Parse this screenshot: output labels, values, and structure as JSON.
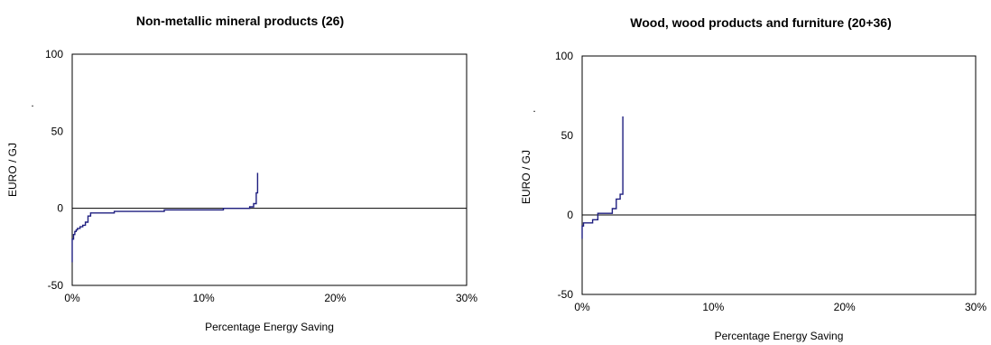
{
  "chart_data": [
    {
      "type": "line",
      "title": "Non-metallic mineral products (26)",
      "xlabel": "Percentage Energy Saving",
      "ylabel": "EURO / GJ",
      "ylabel_mark": ".",
      "xlim": [
        0,
        30
      ],
      "ylim": [
        -50,
        100
      ],
      "x_ticks": [
        "0%",
        "10%",
        "20%",
        "30%"
      ],
      "y_ticks": [
        "100",
        "50",
        "0",
        "-50"
      ],
      "grid": false,
      "legend": "none",
      "line_color": "#1f1f80",
      "series": [
        {
          "x": [
            0,
            0,
            0.1,
            0.1,
            0.2,
            0.2,
            0.3,
            0.3,
            0.4,
            0.4,
            0.6,
            0.6,
            0.8,
            0.8,
            1.0,
            1.0,
            1.2,
            1.2,
            1.4,
            1.4,
            3.2,
            3.2,
            7.0,
            7.0,
            11.5,
            11.5,
            13.5,
            13.5,
            13.8,
            13.8,
            14.0,
            14.0,
            14.1,
            14.1
          ],
          "y": [
            -35,
            -20,
            -20,
            -17,
            -17,
            -15,
            -15,
            -14,
            -14,
            -13,
            -13,
            -12,
            -12,
            -11,
            -11,
            -9,
            -9,
            -5,
            -5,
            -3,
            -3,
            -2,
            -2,
            -1,
            -1,
            0,
            0,
            1,
            1,
            3,
            3,
            10,
            10,
            23
          ]
        }
      ]
    },
    {
      "type": "line",
      "title": "Wood, wood products and furniture (20+36)",
      "xlabel": "Percentage Energy Saving",
      "ylabel": "EURO / GJ",
      "ylabel_mark": ".",
      "xlim": [
        0,
        30
      ],
      "ylim": [
        -50,
        100
      ],
      "x_ticks": [
        "0%",
        "10%",
        "20%",
        "30%"
      ],
      "y_ticks": [
        "100",
        "50",
        "0",
        "-50"
      ],
      "grid": false,
      "legend": "none",
      "line_color": "#1f1f80",
      "series": [
        {
          "x": [
            0,
            0,
            0.1,
            0.1,
            0.8,
            0.8,
            1.2,
            1.2,
            2.3,
            2.3,
            2.6,
            2.6,
            2.9,
            2.9,
            3.1,
            3.1
          ],
          "y": [
            -15,
            -7,
            -7,
            -5,
            -5,
            -3,
            -3,
            1,
            1,
            4,
            4,
            10,
            10,
            13,
            13,
            62
          ]
        }
      ]
    }
  ]
}
